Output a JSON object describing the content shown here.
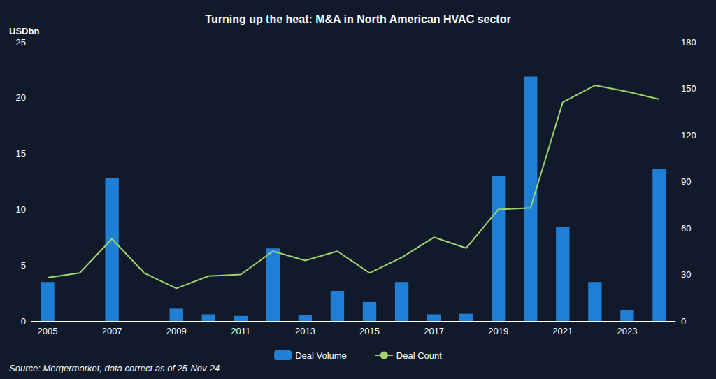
{
  "chart_data": {
    "type": "bar",
    "title": "Turning up the heat: M&A in North American HVAC sector",
    "y_label": "USDbn",
    "source": "Source: Mergermarket, data correct as of 25-Nov-24",
    "categories": [
      "2005",
      null,
      "2007",
      null,
      "2009",
      null,
      "2011",
      null,
      "2013",
      null,
      "2015",
      null,
      "2017",
      null,
      "2019",
      null,
      "2021",
      null,
      "2023",
      null
    ],
    "series": [
      {
        "name": "Deal Volume",
        "type": "bar",
        "color": "#1f7fd6",
        "values": [
          3.5,
          0,
          12.8,
          0,
          1.1,
          0.6,
          0.45,
          6.5,
          0.5,
          2.7,
          1.7,
          3.5,
          0.6,
          0.65,
          13,
          21.9,
          8.4,
          3.5,
          0.95,
          13.6
        ]
      },
      {
        "name": "Deal Count",
        "type": "line",
        "color": "#a0d46c",
        "axis": "y2",
        "values": [
          28,
          31,
          53,
          31,
          21,
          29,
          30,
          45,
          39,
          45,
          31,
          41,
          54,
          47,
          72,
          73,
          141,
          152,
          148,
          143
        ]
      }
    ],
    "ylim": [
      0,
      25
    ],
    "yticks": [
      0,
      5,
      10,
      15,
      20,
      25
    ],
    "y2lim": [
      0,
      180
    ],
    "y2ticks": [
      0,
      30,
      60,
      90,
      120,
      150,
      180
    ],
    "grid": false,
    "legend": "bottom"
  }
}
